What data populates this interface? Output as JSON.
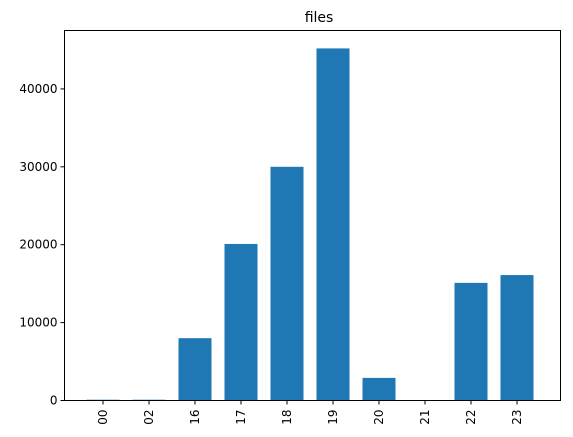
{
  "chart_data": {
    "type": "bar",
    "title": "files",
    "xlabel": "",
    "ylabel": "",
    "categories": [
      "00",
      "02",
      "16",
      "17",
      "18",
      "19",
      "20",
      "21",
      "22",
      "23"
    ],
    "values": [
      100,
      100,
      8000,
      20100,
      30000,
      45200,
      2900,
      0,
      15100,
      16100
    ],
    "ylim": [
      0,
      47500
    ],
    "yticks": [
      0,
      10000,
      20000,
      30000,
      40000
    ],
    "bar_color": "#1f77b4",
    "grid": false,
    "legend": "none"
  }
}
